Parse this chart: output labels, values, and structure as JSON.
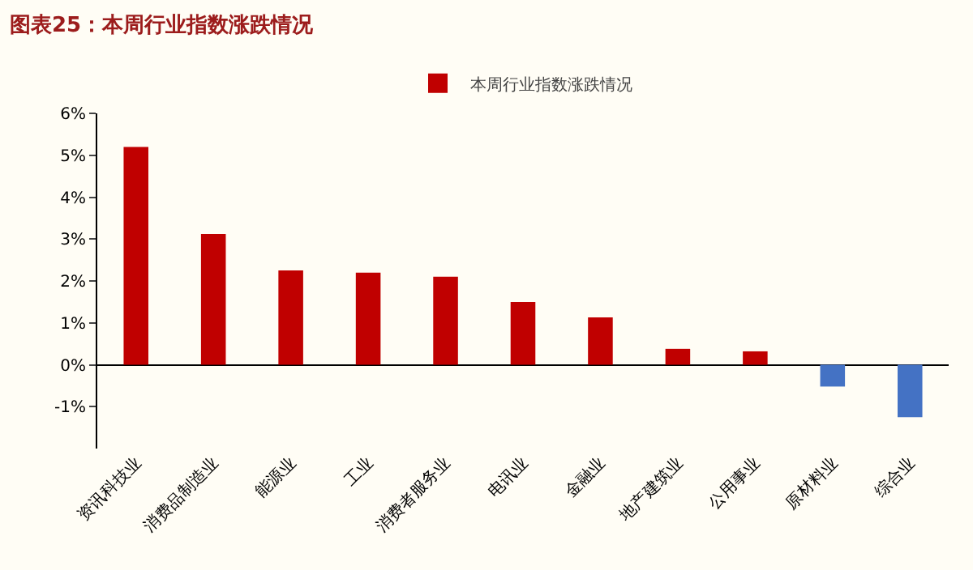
{
  "chart_data": {
    "type": "bar",
    "title": "图表25：本周行业指数涨跌情况",
    "categories": [
      "资讯科技业",
      "消费品制造业",
      "能源业",
      "工业",
      "消费者服务业",
      "电讯业",
      "金融业",
      "地产建筑业",
      "公用事业",
      "原材料业",
      "综合业"
    ],
    "series": [
      {
        "name": "本周行业指数涨跌情况",
        "colors": [
          "#c00000",
          "#c00000",
          "#c00000",
          "#c00000",
          "#c00000",
          "#c00000",
          "#c00000",
          "#c00000",
          "#c00000",
          "#4472c4",
          "#4472c4"
        ],
        "values": [
          5.2,
          3.12,
          2.25,
          2.2,
          2.1,
          1.5,
          1.13,
          0.38,
          0.32,
          -0.52,
          -1.25
        ]
      }
    ],
    "ylim": [
      -2,
      6
    ],
    "yticks": [
      {
        "value": -1,
        "label": "-1%"
      },
      {
        "value": 0,
        "label": "0%"
      },
      {
        "value": 1,
        "label": "1%"
      },
      {
        "value": 2,
        "label": "2%"
      },
      {
        "value": 3,
        "label": "3%"
      },
      {
        "value": 4,
        "label": "4%"
      },
      {
        "value": 5,
        "label": "5%"
      },
      {
        "value": 6,
        "label": "6%"
      }
    ],
    "legend": "top"
  }
}
